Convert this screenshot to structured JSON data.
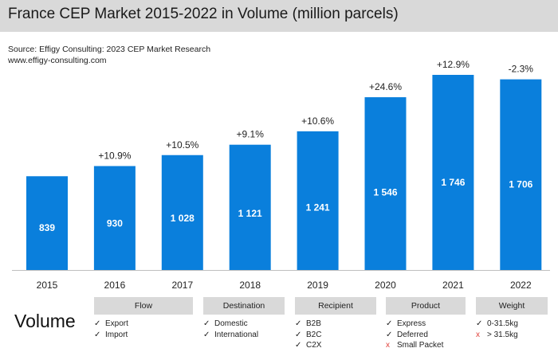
{
  "title": "France CEP Market 2015-2022 in Volume (million parcels)",
  "source_line1": "Source: Effigy Consulting: 2023 CEP Market Research",
  "source_line2": "www.effigy-consulting.com",
  "colors": {
    "bar": "#0a7fdc",
    "title_bg": "#d9d9d9",
    "no_mark": "#e0403a"
  },
  "chart_data": {
    "type": "bar",
    "title": "France CEP Market 2015-2022 in Volume (million parcels)",
    "categories": [
      "2015",
      "2016",
      "2017",
      "2018",
      "2019",
      "2020",
      "2021",
      "2022"
    ],
    "values": [
      839,
      930,
      1028,
      1121,
      1241,
      1546,
      1746,
      1706
    ],
    "value_labels": [
      "839",
      "930",
      "1 028",
      "1 121",
      "1 241",
      "1 546",
      "1 746",
      "1 706"
    ],
    "growth_labels": [
      "",
      "+10.9%",
      "+10.5%",
      "+9.1%",
      "+10.6%",
      "+24.6%",
      "+12.9%",
      "-2.3%"
    ],
    "ylim": [
      0,
      1746
    ],
    "grid": false,
    "xlabel": "",
    "ylabel": ""
  },
  "volume_label": "Volume",
  "segments": [
    {
      "header": "Flow",
      "items": [
        {
          "mark": "✓",
          "type": "yes",
          "label": "Export"
        },
        {
          "mark": "✓",
          "type": "yes",
          "label": "Import"
        }
      ]
    },
    {
      "header": "Destination",
      "items": [
        {
          "mark": "✓",
          "type": "yes",
          "label": "Domestic"
        },
        {
          "mark": "✓",
          "type": "yes",
          "label": "International"
        }
      ]
    },
    {
      "header": "Recipient",
      "items": [
        {
          "mark": "✓",
          "type": "yes",
          "label": "B2B"
        },
        {
          "mark": "✓",
          "type": "yes",
          "label": "B2C"
        },
        {
          "mark": "✓",
          "type": "yes",
          "label": "C2X"
        }
      ]
    },
    {
      "header": "Product",
      "items": [
        {
          "mark": "✓",
          "type": "yes",
          "label": "Express"
        },
        {
          "mark": "✓",
          "type": "yes",
          "label": "Deferred"
        },
        {
          "mark": "x",
          "type": "no",
          "label": "Small Packet"
        }
      ]
    },
    {
      "header": "Weight",
      "items": [
        {
          "mark": "✓",
          "type": "yes",
          "label": "0-31.5kg"
        },
        {
          "mark": "x",
          "type": "no",
          "label": "> 31.5kg"
        }
      ]
    }
  ]
}
